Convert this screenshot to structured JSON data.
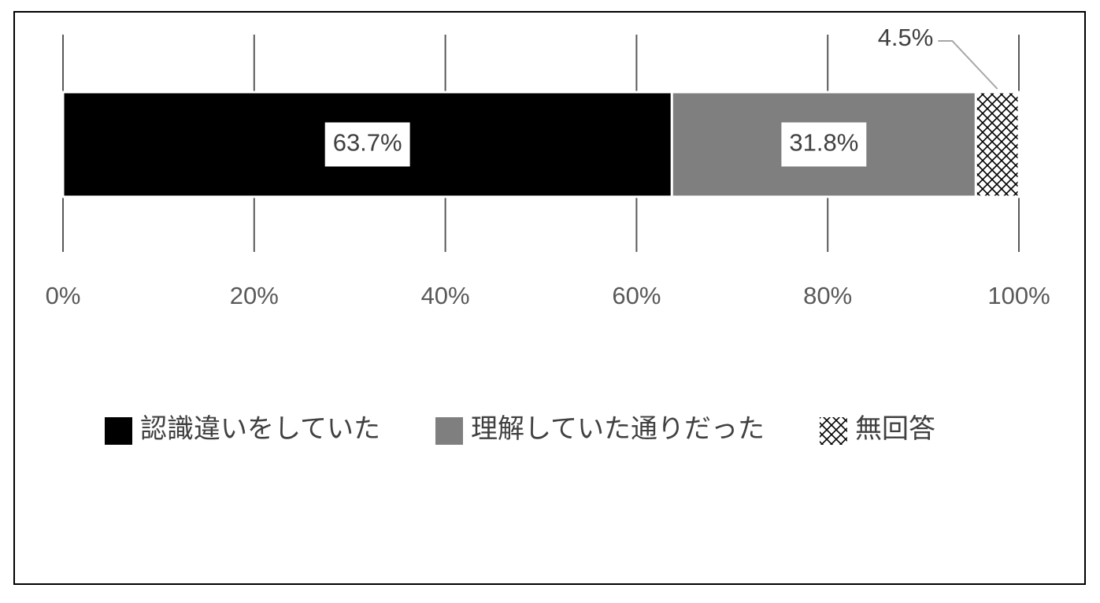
{
  "chart_data": {
    "type": "stacked-bar-horizontal",
    "series": [
      {
        "name": "認識違いをしていた",
        "color": "#000000",
        "values": [
          63.7
        ],
        "value_labels": [
          "63.7%"
        ]
      },
      {
        "name": "理解していた通りだった",
        "color": "#7f7f7f",
        "values": [
          31.8
        ],
        "value_labels": [
          "31.8%"
        ]
      },
      {
        "name": "無回答",
        "color": "#000000",
        "hatch": true,
        "values": [
          4.5
        ],
        "value_labels": [
          "4.5%"
        ]
      }
    ],
    "xlim": [
      0,
      100
    ],
    "xticks": [
      {
        "value": 0,
        "label": "0%"
      },
      {
        "value": 20,
        "label": "20%"
      },
      {
        "value": 40,
        "label": "40%"
      },
      {
        "value": 60,
        "label": "60%"
      },
      {
        "value": 80,
        "label": "80%"
      },
      {
        "value": 100,
        "label": "100%"
      }
    ],
    "grid": true,
    "legend": "bottom"
  }
}
